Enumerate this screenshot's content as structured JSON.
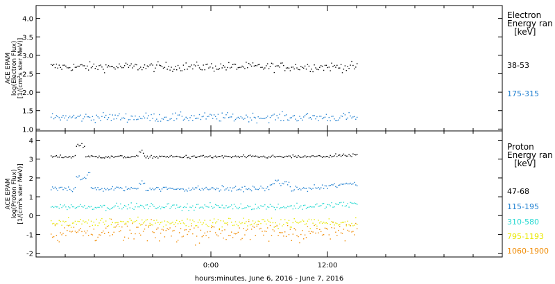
{
  "chart_data": [
    {
      "type": "scatter",
      "panel": "electron",
      "ylabel_lines": [
        "ACE EPAM",
        "log(Electron Flux)",
        "[1/(cm²s ster MeV)]"
      ],
      "ylim": [
        0.95,
        4.35
      ],
      "yticks": [
        1.0,
        1.5,
        2.0,
        2.5,
        3.0,
        3.5,
        4.0
      ],
      "ytick_labels": [
        "1.0",
        "1.5",
        "2.0",
        "2.5",
        "3.0",
        "3.5",
        "4.0"
      ],
      "legend_title": [
        "Electron",
        "Energy ran",
        "[keV]"
      ],
      "series": [
        {
          "label": "38-53",
          "color": "#000000",
          "base": 2.7,
          "noise": 0.06
        },
        {
          "label": "175-315",
          "color": "#1f7fd0",
          "base": 1.33,
          "noise": 0.06
        }
      ]
    },
    {
      "type": "scatter",
      "panel": "proton",
      "ylabel_lines": [
        "ACE EPAM",
        "log(Proton Flux)",
        "[1/(cm²s ster MeV)]"
      ],
      "ylim": [
        -2.2,
        4.5
      ],
      "yticks": [
        -2,
        -1,
        0,
        1,
        2,
        3,
        4
      ],
      "ytick_labels": [
        "-2",
        "-1",
        "0",
        "1",
        "2",
        "3",
        "4"
      ],
      "legend_title": [
        "Proton",
        "Energy ran",
        "[keV]"
      ],
      "series": [
        {
          "label": "47-68",
          "color": "#000000",
          "base": 3.15,
          "noise": 0.04
        },
        {
          "label": "115-195",
          "color": "#1f7fd0",
          "base": 1.45,
          "noise": 0.07
        },
        {
          "label": "310-580",
          "color": "#22d8d0",
          "base": 0.5,
          "noise": 0.08
        },
        {
          "label": "795-1193",
          "color": "#e8e800",
          "base": -0.35,
          "noise": 0.12
        },
        {
          "label": "1060-1900",
          "color": "#f08a00",
          "base": -0.85,
          "noise": 0.25
        }
      ]
    }
  ],
  "x_axis": {
    "xlim_hours": [
      -18,
      30
    ],
    "data_range_hours": [
      -16.5,
      15
    ],
    "major_ticks_hours": [
      0,
      12
    ],
    "major_tick_labels": [
      "0:00",
      "12:00"
    ],
    "minor_step_hours": 3,
    "xlabel": "hours:minutes, June  6, 2016 - June  7, 2016"
  }
}
